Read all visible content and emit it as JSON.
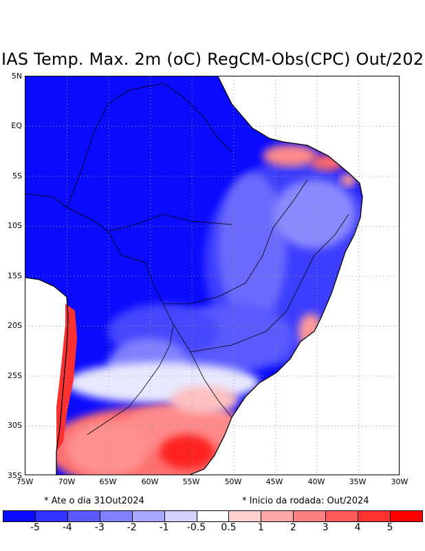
{
  "title": "IAS Temp. Max. 2m (oC) RegCM-Obs(CPC) Out/202",
  "map": {
    "lat_labels": [
      "5N",
      "EQ",
      "5S",
      "10S",
      "15S",
      "20S",
      "25S",
      "30S",
      "35S"
    ],
    "lon_labels": [
      "75W",
      "70W",
      "65W",
      "60W",
      "55W",
      "50W",
      "45W",
      "40W",
      "35W",
      "30W"
    ],
    "lat_range": [
      -35,
      5
    ],
    "lon_range": [
      -75,
      -30
    ],
    "gridlines": "dotted"
  },
  "footer": {
    "left_note": "* Ate o dia 31Out2024",
    "right_note": "* Inicio da rodada: Out/2024"
  },
  "colorbar": {
    "colors": [
      "#0a0aff",
      "#3232ff",
      "#5a5aff",
      "#8080ff",
      "#a8a8ff",
      "#d2d2ff",
      "#ffffff",
      "#ffd2d2",
      "#ffa8a8",
      "#ff8080",
      "#ff5a5a",
      "#ff3232",
      "#ff0000"
    ],
    "labels": [
      "-5",
      "-4",
      "-3",
      "-2",
      "-1",
      "-0.5",
      "0.5",
      "1",
      "2",
      "3",
      "4",
      "5"
    ]
  }
}
